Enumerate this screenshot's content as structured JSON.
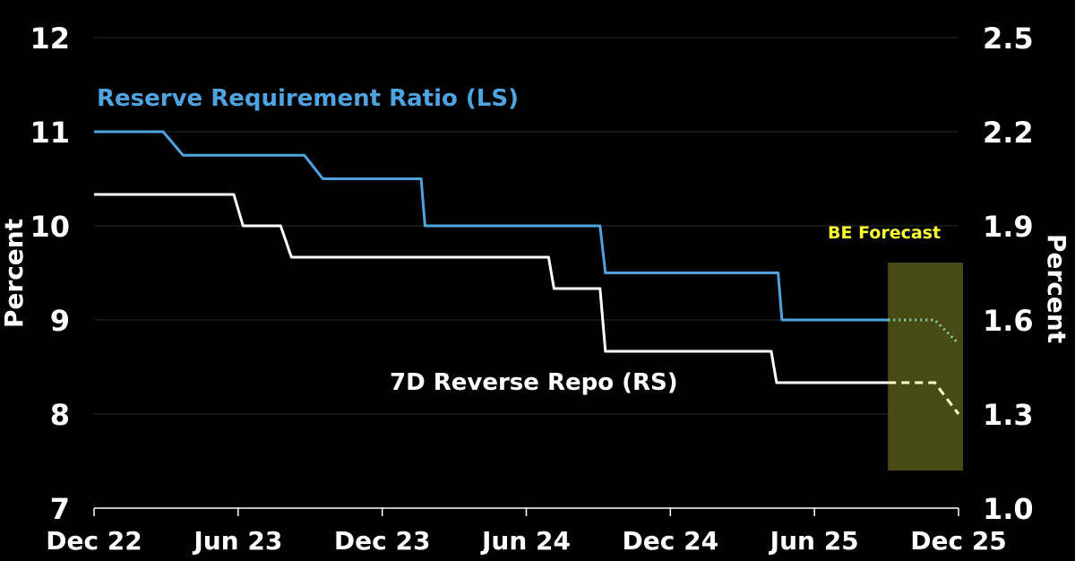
{
  "chart_data": {
    "type": "line",
    "title": "",
    "x_ticks": [
      "Dec 22",
      "Jun 23",
      "Dec 23",
      "Jun 24",
      "Dec 24",
      "Jun 25",
      "Dec 25"
    ],
    "y_left": {
      "label": "Percent",
      "range": [
        7,
        12
      ],
      "ticks": [
        "7",
        "8",
        "9",
        "10",
        "11",
        "12"
      ]
    },
    "y_right": {
      "label": "Percent",
      "range": [
        1.0,
        2.5
      ],
      "ticks": [
        "1.0",
        "1.3",
        "1.6",
        "1.9",
        "2.2",
        "2.5"
      ]
    },
    "grid": "horizontal",
    "forecast": {
      "label": "BE Forecast",
      "color": "#ffff33",
      "band_color": "#4a4a16"
    },
    "series": [
      {
        "name": "Reserve Requirement Ratio (LS)",
        "axis": "left",
        "color": "#4fa3e0",
        "points": [
          [
            "2022-12-01",
            11.0
          ],
          [
            "2023-03-01",
            11.0
          ],
          [
            "2023-03-27",
            10.75
          ],
          [
            "2023-09-01",
            10.75
          ],
          [
            "2023-09-25",
            10.5
          ],
          [
            "2024-01-31",
            10.5
          ],
          [
            "2024-02-05",
            10.0
          ],
          [
            "2024-09-20",
            10.0
          ],
          [
            "2024-09-27",
            9.5
          ],
          [
            "2025-05-10",
            9.5
          ],
          [
            "2025-05-15",
            9.0
          ],
          [
            "2025-09-30",
            9.0
          ]
        ],
        "forecast_points": [
          [
            "2025-09-30",
            9.0
          ],
          [
            "2025-11-30",
            9.0
          ],
          [
            "2025-12-31",
            8.75
          ]
        ]
      },
      {
        "name": "7D Reverse Repo (RS)",
        "axis": "right",
        "color": "#ffffff",
        "points": [
          [
            "2022-12-01",
            2.0
          ],
          [
            "2023-06-01",
            2.0
          ],
          [
            "2023-06-13",
            1.9
          ],
          [
            "2023-08-01",
            1.9
          ],
          [
            "2023-08-15",
            1.8
          ],
          [
            "2024-07-15",
            1.8
          ],
          [
            "2024-07-22",
            1.7
          ],
          [
            "2024-09-20",
            1.7
          ],
          [
            "2024-09-27",
            1.5
          ],
          [
            "2025-05-01",
            1.5
          ],
          [
            "2025-05-08",
            1.4
          ],
          [
            "2025-09-30",
            1.4
          ]
        ],
        "forecast_points": [
          [
            "2025-09-30",
            1.4
          ],
          [
            "2025-11-30",
            1.4
          ],
          [
            "2025-12-31",
            1.3
          ]
        ]
      }
    ]
  }
}
